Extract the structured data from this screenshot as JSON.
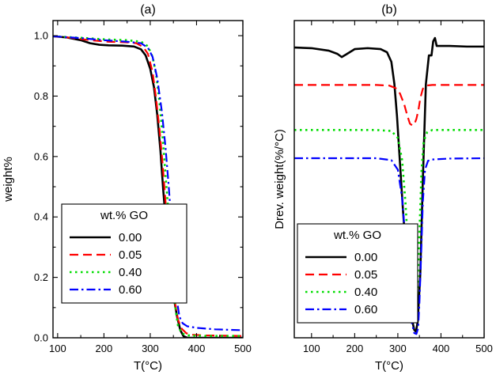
{
  "series_styles": [
    {
      "color": "#000000",
      "dash": "",
      "width": 2.6
    },
    {
      "color": "#ff0000",
      "dash": "11,6",
      "width": 2.2
    },
    {
      "color": "#00dd00",
      "dash": "2.5,4.5",
      "width": 2.6
    },
    {
      "color": "#0000ff",
      "dash": "11,4,2.5,4",
      "width": 2.2
    }
  ],
  "chart_data": [
    {
      "type": "line",
      "title": "(a)",
      "xlabel": "T(°C)",
      "ylabel": "weight%",
      "xlim": [
        90,
        500
      ],
      "ylim": [
        0,
        1.05
      ],
      "xticks": [
        100,
        200,
        300,
        400,
        500
      ],
      "yticks": [
        0.0,
        0.2,
        0.4,
        0.6,
        0.8,
        1.0
      ],
      "ytick_labels": [
        "0.0",
        "0.2",
        "0.4",
        "0.6",
        "0.8",
        "1.0"
      ],
      "legend": {
        "title": "wt.% GO",
        "position": "bottom-left"
      },
      "series": [
        {
          "name": "0.00",
          "x": [
            90,
            120,
            150,
            170,
            190,
            210,
            240,
            265,
            280,
            290,
            300,
            308,
            315,
            322,
            328,
            335,
            342,
            350,
            358,
            365,
            372,
            380,
            400,
            450,
            500
          ],
          "y": [
            0.998,
            0.994,
            0.985,
            0.975,
            0.97,
            0.968,
            0.967,
            0.964,
            0.955,
            0.935,
            0.89,
            0.83,
            0.74,
            0.62,
            0.49,
            0.36,
            0.24,
            0.14,
            0.07,
            0.025,
            0.005,
            0.0,
            0.0,
            0.0,
            0.0
          ]
        },
        {
          "name": "0.05",
          "x": [
            90,
            130,
            170,
            210,
            250,
            270,
            285,
            295,
            305,
            312,
            320,
            327,
            333,
            340,
            347,
            353,
            360,
            368,
            378,
            390,
            420,
            460,
            500
          ],
          "y": [
            0.998,
            0.993,
            0.985,
            0.98,
            0.978,
            0.975,
            0.962,
            0.94,
            0.88,
            0.8,
            0.69,
            0.57,
            0.45,
            0.32,
            0.2,
            0.12,
            0.06,
            0.03,
            0.015,
            0.01,
            0.008,
            0.007,
            0.006
          ]
        },
        {
          "name": "0.40",
          "x": [
            90,
            150,
            200,
            250,
            280,
            295,
            305,
            313,
            320,
            327,
            333,
            340,
            345,
            350,
            355,
            360,
            368,
            380,
            420,
            460,
            500
          ],
          "y": [
            0.998,
            0.993,
            0.988,
            0.985,
            0.98,
            0.965,
            0.93,
            0.87,
            0.78,
            0.66,
            0.54,
            0.4,
            0.28,
            0.17,
            0.09,
            0.04,
            0.015,
            0.008,
            0.006,
            0.006,
            0.006
          ]
        },
        {
          "name": "0.60",
          "x": [
            90,
            150,
            200,
            250,
            280,
            295,
            305,
            315,
            325,
            333,
            340,
            347,
            353,
            358,
            363,
            370,
            380,
            400,
            440,
            500
          ],
          "y": [
            0.998,
            0.992,
            0.985,
            0.98,
            0.975,
            0.96,
            0.93,
            0.86,
            0.75,
            0.63,
            0.5,
            0.35,
            0.21,
            0.12,
            0.07,
            0.048,
            0.038,
            0.033,
            0.028,
            0.025
          ]
        }
      ]
    },
    {
      "type": "line",
      "title": "(b)",
      "xlabel": "T(°C)",
      "ylabel": "Drev. weight(%/°C)",
      "xlim": [
        60,
        500
      ],
      "ylim": [
        0,
        1
      ],
      "xticks": [
        100,
        200,
        300,
        400,
        500
      ],
      "yticks": [],
      "legend": {
        "title": "wt.% GO",
        "position": "bottom-left"
      },
      "series": [
        {
          "name": "0.00",
          "x": [
            60,
            100,
            140,
            160,
            170,
            180,
            200,
            230,
            260,
            275,
            285,
            292,
            298,
            305,
            312,
            320,
            328,
            334,
            338,
            342,
            346,
            352,
            358,
            365,
            372,
            378,
            382,
            386,
            390,
            420,
            460,
            500
          ],
          "y": [
            0.915,
            0.913,
            0.905,
            0.895,
            0.885,
            0.893,
            0.91,
            0.913,
            0.91,
            0.9,
            0.87,
            0.8,
            0.7,
            0.55,
            0.4,
            0.25,
            0.12,
            0.05,
            0.025,
            0.02,
            0.05,
            0.2,
            0.5,
            0.8,
            0.89,
            0.89,
            0.935,
            0.945,
            0.92,
            0.92,
            0.918,
            0.918
          ]
        },
        {
          "name": "0.05",
          "x": [
            60,
            150,
            250,
            280,
            295,
            305,
            315,
            322,
            328,
            333,
            338,
            343,
            348,
            352,
            358,
            365,
            380,
            420,
            500
          ],
          "y": [
            0.797,
            0.797,
            0.797,
            0.795,
            0.787,
            0.77,
            0.735,
            0.7,
            0.675,
            0.67,
            0.672,
            0.69,
            0.72,
            0.755,
            0.785,
            0.795,
            0.797,
            0.797,
            0.797
          ]
        },
        {
          "name": "0.40",
          "x": [
            60,
            150,
            250,
            285,
            300,
            310,
            318,
            325,
            330,
            335,
            340,
            345,
            350,
            355,
            360,
            368,
            380,
            420,
            500
          ],
          "y": [
            0.655,
            0.655,
            0.655,
            0.652,
            0.63,
            0.56,
            0.42,
            0.25,
            0.12,
            0.06,
            0.06,
            0.14,
            0.33,
            0.53,
            0.62,
            0.648,
            0.655,
            0.655,
            0.655
          ]
        },
        {
          "name": "0.60",
          "x": [
            60,
            150,
            250,
            285,
            300,
            310,
            318,
            325,
            332,
            338,
            343,
            347,
            350,
            354,
            358,
            363,
            370,
            380,
            420,
            500
          ],
          "y": [
            0.566,
            0.566,
            0.566,
            0.56,
            0.53,
            0.44,
            0.3,
            0.14,
            0.05,
            0.015,
            0.012,
            0.03,
            0.11,
            0.26,
            0.43,
            0.53,
            0.558,
            0.562,
            0.565,
            0.566
          ]
        }
      ]
    }
  ]
}
